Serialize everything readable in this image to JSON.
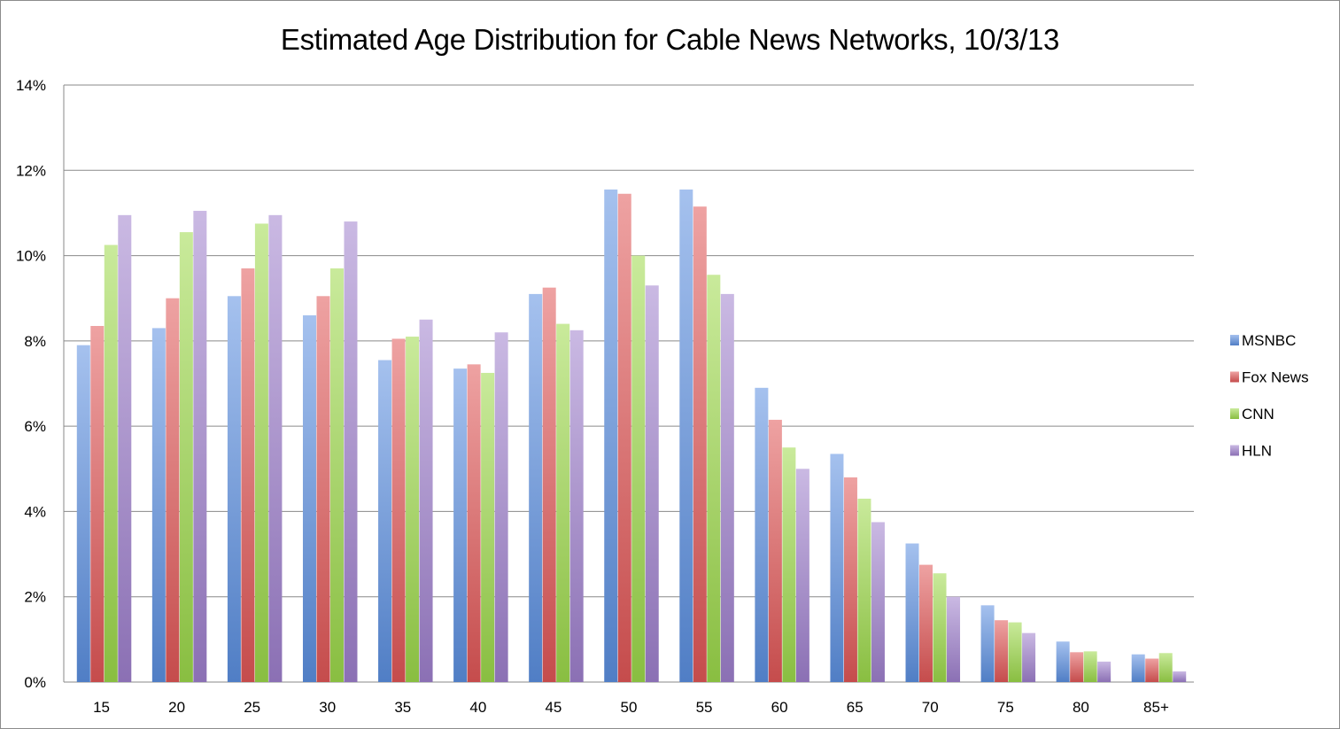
{
  "chart_data": {
    "type": "bar",
    "title": "Estimated Age Distribution for Cable News Networks, 10/3/13",
    "xlabel": "",
    "ylabel": "",
    "categories": [
      "15",
      "20",
      "25",
      "30",
      "35",
      "40",
      "45",
      "50",
      "55",
      "60",
      "65",
      "70",
      "75",
      "80",
      "85+"
    ],
    "ylim": [
      0,
      14
    ],
    "yticks": [
      0,
      2,
      4,
      6,
      8,
      10,
      12,
      14
    ],
    "ytick_labels": [
      "0%",
      "2%",
      "4%",
      "6%",
      "8%",
      "10%",
      "12%",
      "14%"
    ],
    "grid": true,
    "legend_position": "right",
    "series": [
      {
        "name": "MSNBC",
        "color": "#5b8fe0",
        "values": [
          7.9,
          8.3,
          9.05,
          8.6,
          7.55,
          7.35,
          9.1,
          11.55,
          11.55,
          6.9,
          5.35,
          3.25,
          1.8,
          0.95,
          0.65
        ]
      },
      {
        "name": "Fox News",
        "color": "#e05656",
        "values": [
          8.35,
          9.0,
          9.7,
          9.05,
          8.05,
          7.45,
          9.25,
          11.45,
          11.15,
          6.15,
          4.8,
          2.75,
          1.45,
          0.7,
          0.55
        ]
      },
      {
        "name": "CNN",
        "color": "#9cd84a",
        "values": [
          10.25,
          10.55,
          10.75,
          9.7,
          8.1,
          7.25,
          8.4,
          10.0,
          9.55,
          5.5,
          4.3,
          2.55,
          1.4,
          0.72,
          0.68
        ]
      },
      {
        "name": "HLN",
        "color": "#9e7fcc",
        "values": [
          10.95,
          11.05,
          10.95,
          10.8,
          8.5,
          8.2,
          8.25,
          9.3,
          9.1,
          5.0,
          3.75,
          2.0,
          1.15,
          0.48,
          0.25
        ]
      }
    ]
  }
}
